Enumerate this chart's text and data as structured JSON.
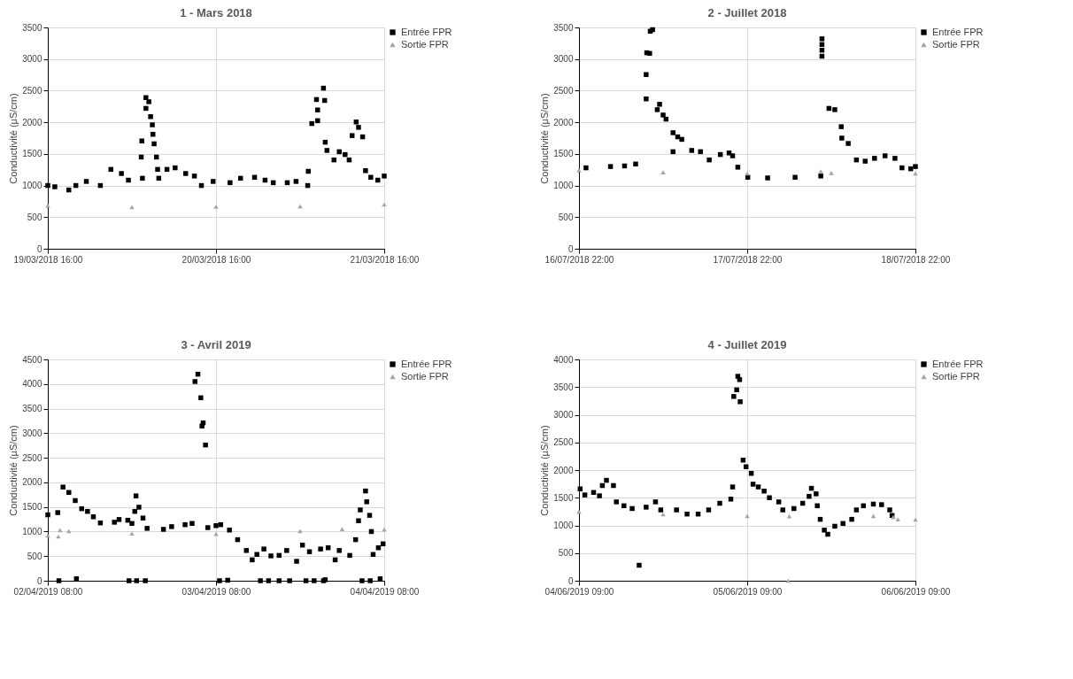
{
  "chart_data": [
    {
      "type": "scatter",
      "title": "1  -  Mars 2018",
      "ylabel": "Conductivité (µS/cm)",
      "grid": true,
      "legend": "top right",
      "xlim": [
        "2018-03-19T16:00",
        "2018-03-21T16:00"
      ],
      "xticks": [
        {
          "value": "2018-03-19T16:00",
          "label": "19/03/2018 16:00"
        },
        {
          "value": "2018-03-20T16:00",
          "label": "20/03/2018 16:00"
        },
        {
          "value": "2018-03-21T16:00",
          "label": "21/03/2018 16:00"
        }
      ],
      "ylim": [
        0,
        3500
      ],
      "yticks": [
        0,
        500,
        1000,
        1500,
        2000,
        2500,
        3000,
        3500
      ],
      "series": [
        {
          "name": "Entrée FPR",
          "color": "#000000",
          "marker": "square",
          "x": [
            "2018-03-19T16:00",
            "2018-03-19T17:00",
            "2018-03-19T19:00",
            "2018-03-19T20:00",
            "2018-03-19T21:30",
            "2018-03-19T23:30",
            "2018-03-20T01:00",
            "2018-03-20T02:30",
            "2018-03-20T03:30",
            "2018-03-20T05:20",
            "2018-03-20T05:25",
            "2018-03-20T05:30",
            "2018-03-20T06:00",
            "2018-03-20T06:00",
            "2018-03-20T06:25",
            "2018-03-20T06:40",
            "2018-03-20T06:55",
            "2018-03-20T07:00",
            "2018-03-20T07:10",
            "2018-03-20T07:30",
            "2018-03-20T07:40",
            "2018-03-20T07:50",
            "2018-03-20T09:00",
            "2018-03-20T10:10",
            "2018-03-20T11:40",
            "2018-03-20T12:55",
            "2018-03-20T13:55",
            "2018-03-20T15:35",
            "2018-03-20T18:00",
            "2018-03-20T19:30",
            "2018-03-20T21:30",
            "2018-03-20T23:00",
            "2018-03-21T00:10",
            "2018-03-21T02:10",
            "2018-03-21T03:25",
            "2018-03-21T05:05",
            "2018-03-21T05:10",
            "2018-03-21T05:40",
            "2018-03-21T06:20",
            "2018-03-21T06:30",
            "2018-03-21T06:30",
            "2018-03-21T07:20",
            "2018-03-21T07:30",
            "2018-03-21T07:35",
            "2018-03-21T07:50",
            "2018-03-21T08:50",
            "2018-03-21T09:35",
            "2018-03-21T10:25",
            "2018-03-21T11:00",
            "2018-03-21T11:25",
            "2018-03-21T12:00",
            "2018-03-21T12:20",
            "2018-03-21T12:55",
            "2018-03-21T13:20",
            "2018-03-21T14:05",
            "2018-03-21T15:05",
            "2018-03-21T16:00"
          ],
          "values": [
            1000,
            980,
            930,
            1000,
            1065,
            1000,
            1255,
            1190,
            1085,
            1450,
            1705,
            1115,
            2390,
            2220,
            2325,
            2090,
            1960,
            1810,
            1660,
            1450,
            1255,
            1115,
            1255,
            1280,
            1190,
            1150,
            1000,
            1065,
            1045,
            1115,
            1130,
            1085,
            1045,
            1045,
            1065,
            1000,
            1225,
            1980,
            2360,
            2025,
            2195,
            2540,
            2345,
            1685,
            1555,
            1405,
            1535,
            1490,
            1405,
            1790,
            2005,
            1920,
            1770,
            1235,
            1130,
            1085,
            1150
          ]
        },
        {
          "name": "Sortie FPR",
          "color": "#a5a5a5",
          "marker": "triangle",
          "x": [
            "2018-03-19T16:00",
            "2018-03-20T04:00",
            "2018-03-20T16:00",
            "2018-03-21T04:00",
            "2018-03-21T16:00"
          ],
          "values": [
            680,
            660,
            665,
            670,
            700
          ]
        }
      ]
    },
    {
      "type": "scatter",
      "title": "2  -  Juillet 2018",
      "ylabel": "Conductivité (µS/cm)",
      "grid": true,
      "legend": "top right",
      "xlim": [
        "2018-07-16T22:00",
        "2018-07-18T22:00"
      ],
      "xticks": [
        {
          "value": "2018-07-16T22:00",
          "label": "16/07/2018 22:00"
        },
        {
          "value": "2018-07-17T22:00",
          "label": "17/07/2018 22:00"
        },
        {
          "value": "2018-07-18T22:00",
          "label": "18/07/2018 22:00"
        }
      ],
      "ylim": [
        0,
        3500
      ],
      "yticks": [
        0,
        500,
        1000,
        1500,
        2000,
        2500,
        3000,
        3500
      ],
      "series": [
        {
          "name": "Entrée FPR",
          "color": "#000000",
          "marker": "square",
          "x": [
            "2018-07-16T23:00",
            "2018-07-17T02:30",
            "2018-07-17T04:30",
            "2018-07-17T06:05",
            "2018-07-17T07:35",
            "2018-07-17T07:35",
            "2018-07-17T07:40",
            "2018-07-17T08:05",
            "2018-07-17T08:10",
            "2018-07-17T08:30",
            "2018-07-17T09:10",
            "2018-07-17T09:30",
            "2018-07-17T10:00",
            "2018-07-17T10:25",
            "2018-07-17T11:25",
            "2018-07-17T11:25",
            "2018-07-17T12:05",
            "2018-07-17T12:40",
            "2018-07-17T14:05",
            "2018-07-17T15:20",
            "2018-07-17T16:35",
            "2018-07-17T18:10",
            "2018-07-17T19:25",
            "2018-07-17T19:55",
            "2018-07-17T20:40",
            "2018-07-17T22:05",
            "2018-07-18T00:55",
            "2018-07-18T04:50",
            "2018-07-18T08:30",
            "2018-07-18T08:40",
            "2018-07-18T08:40",
            "2018-07-18T08:40",
            "2018-07-18T08:40",
            "2018-07-18T09:40",
            "2018-07-18T10:30",
            "2018-07-18T11:25",
            "2018-07-18T11:30",
            "2018-07-18T12:25",
            "2018-07-18T13:35",
            "2018-07-18T14:50",
            "2018-07-18T16:10",
            "2018-07-18T17:40",
            "2018-07-18T19:05",
            "2018-07-18T20:05",
            "2018-07-18T21:20",
            "2018-07-18T22:00"
          ],
          "values": [
            1280,
            1300,
            1310,
            1340,
            2370,
            2755,
            3100,
            3090,
            3440,
            3465,
            2200,
            2285,
            2115,
            2050,
            1535,
            1835,
            1770,
            1730,
            1555,
            1535,
            1405,
            1490,
            1515,
            1470,
            1290,
            1130,
            1120,
            1130,
            1150,
            3320,
            3230,
            3140,
            3045,
            2220,
            2200,
            1930,
            1750,
            1665,
            1405,
            1385,
            1430,
            1470,
            1430,
            1280,
            1265,
            1300
          ]
        },
        {
          "name": "Sortie FPR",
          "color": "#a5a5a5",
          "marker": "triangle",
          "x": [
            "2018-07-16T22:00",
            "2018-07-17T10:00",
            "2018-07-17T22:00",
            "2018-07-18T08:30",
            "2018-07-18T10:00",
            "2018-07-18T22:00"
          ],
          "values": [
            1240,
            1210,
            1190,
            1225,
            1200,
            1190
          ]
        }
      ]
    },
    {
      "type": "scatter",
      "title": "3  -  Avril 2019",
      "ylabel": "Conductivité (µS/cm)",
      "grid": true,
      "legend": "top right",
      "xlim": [
        "2019-04-02T08:00",
        "2019-04-04T08:00"
      ],
      "xticks": [
        {
          "value": "2019-04-02T08:00",
          "label": "02/04/2019 08:00"
        },
        {
          "value": "2019-04-03T08:00",
          "label": "03/04/2019 08:00"
        },
        {
          "value": "2019-04-04T08:00",
          "label": "04/04/2019 08:00"
        }
      ],
      "ylim": [
        0,
        4500
      ],
      "yticks": [
        0,
        500,
        1000,
        1500,
        2000,
        2500,
        3000,
        3500,
        4000,
        4500
      ],
      "series": [
        {
          "name": "Entrée FPR",
          "color": "#000000",
          "marker": "square",
          "x": [
            "2019-04-02T08:00",
            "2019-04-02T09:25",
            "2019-04-02T09:35",
            "2019-04-02T10:10",
            "2019-04-02T11:00",
            "2019-04-02T11:55",
            "2019-04-02T12:05",
            "2019-04-02T12:50",
            "2019-04-02T13:40",
            "2019-04-02T14:30",
            "2019-04-02T15:30",
            "2019-04-02T17:30",
            "2019-04-02T18:10",
            "2019-04-02T19:25",
            "2019-04-02T19:35",
            "2019-04-02T20:00",
            "2019-04-02T20:25",
            "2019-04-02T20:35",
            "2019-04-02T20:40",
            "2019-04-02T21:00",
            "2019-04-02T21:35",
            "2019-04-02T21:55",
            "2019-04-02T22:10",
            "2019-04-03T00:30",
            "2019-04-03T01:40",
            "2019-04-03T03:35",
            "2019-04-03T04:35",
            "2019-04-03T05:00",
            "2019-04-03T05:25",
            "2019-04-03T05:50",
            "2019-04-03T06:00",
            "2019-04-03T06:10",
            "2019-04-03T06:30",
            "2019-04-03T06:50",
            "2019-04-03T08:00",
            "2019-04-03T08:30",
            "2019-04-03T08:40",
            "2019-04-03T09:40",
            "2019-04-03T09:55",
            "2019-04-03T11:05",
            "2019-04-03T12:20",
            "2019-04-03T13:10",
            "2019-04-03T13:50",
            "2019-04-03T14:20",
            "2019-04-03T14:50",
            "2019-04-03T15:30",
            "2019-04-03T15:50",
            "2019-04-03T17:00",
            "2019-04-03T17:00",
            "2019-04-03T18:05",
            "2019-04-03T18:30",
            "2019-04-03T19:30",
            "2019-04-03T20:20",
            "2019-04-03T20:50",
            "2019-04-03T21:20",
            "2019-04-03T22:00",
            "2019-04-03T22:55",
            "2019-04-03T23:20",
            "2019-04-03T23:35",
            "2019-04-04T00:00",
            "2019-04-04T01:00",
            "2019-04-04T01:35",
            "2019-04-04T03:05",
            "2019-04-04T03:55",
            "2019-04-04T04:20",
            "2019-04-04T04:35",
            "2019-04-04T04:50",
            "2019-04-04T05:20",
            "2019-04-04T05:30",
            "2019-04-04T05:55",
            "2019-04-04T06:00",
            "2019-04-04T06:10",
            "2019-04-04T06:25",
            "2019-04-04T07:10",
            "2019-04-04T07:25",
            "2019-04-04T07:50"
          ],
          "values": [
            1340,
            1385,
            0,
            1905,
            1795,
            1630,
            40,
            1465,
            1410,
            1300,
            1175,
            1190,
            1245,
            1230,
            0,
            1165,
            1410,
            1725,
            0,
            1495,
            1275,
            0,
            1065,
            1045,
            1100,
            1140,
            1165,
            4050,
            4200,
            3720,
            3145,
            3210,
            2760,
            1080,
            1120,
            0,
            1140,
            10,
            1030,
            835,
            615,
            425,
            535,
            0,
            645,
            0,
            505,
            515,
            0,
            615,
            0,
            395,
            725,
            0,
            590,
            0,
            645,
            0,
            20,
            670,
            425,
            615,
            515,
            835,
            1220,
            1440,
            0,
            1825,
            1605,
            1330,
            0,
            1000,
            535,
            670,
            40,
            750
          ]
        },
        {
          "name": "Sortie FPR",
          "color": "#a5a5a5",
          "marker": "triangle",
          "x": [
            "2019-04-02T08:00",
            "2019-04-02T09:30",
            "2019-04-02T09:45",
            "2019-04-02T11:00",
            "2019-04-02T20:00",
            "2019-04-03T08:00",
            "2019-04-03T20:00",
            "2019-04-04T02:00",
            "2019-04-04T08:00"
          ],
          "values": [
            920,
            900,
            1030,
            1010,
            960,
            950,
            1010,
            1050,
            1040
          ]
        }
      ]
    },
    {
      "type": "scatter",
      "title": "4  -  Juillet 2019",
      "ylabel": "Conductivité (µS/cm)",
      "grid": true,
      "legend": "top right",
      "xlim": [
        "2019-06-04T09:00",
        "2019-06-06T09:00"
      ],
      "xticks": [
        {
          "value": "2019-06-04T09:00",
          "label": "04/06/2019 09:00"
        },
        {
          "value": "2019-06-05T09:00",
          "label": "05/06/2019 09:00"
        },
        {
          "value": "2019-06-06T09:00",
          "label": "06/06/2019 09:00"
        }
      ],
      "ylim": [
        0,
        4000
      ],
      "yticks": [
        0,
        500,
        1000,
        1500,
        2000,
        2500,
        3000,
        3500,
        4000
      ],
      "series": [
        {
          "name": "Entrée FPR",
          "color": "#000000",
          "marker": "square",
          "x": [
            "2019-06-04T09:10",
            "2019-06-04T09:50",
            "2019-06-04T11:05",
            "2019-06-04T11:55",
            "2019-06-04T12:20",
            "2019-06-04T12:55",
            "2019-06-04T13:55",
            "2019-06-04T14:20",
            "2019-06-04T15:25",
            "2019-06-04T16:35",
            "2019-06-04T17:35",
            "2019-06-04T18:35",
            "2019-06-04T19:55",
            "2019-06-04T20:40",
            "2019-06-04T22:55",
            "2019-06-05T00:25",
            "2019-06-05T02:00",
            "2019-06-05T03:30",
            "2019-06-05T05:05",
            "2019-06-05T06:40",
            "2019-06-05T06:55",
            "2019-06-05T07:05",
            "2019-06-05T07:30",
            "2019-06-05T07:40",
            "2019-06-05T07:55",
            "2019-06-05T08:00",
            "2019-06-05T08:25",
            "2019-06-05T08:50",
            "2019-06-05T09:35",
            "2019-06-05T09:50",
            "2019-06-05T10:35",
            "2019-06-05T11:25",
            "2019-06-05T12:10",
            "2019-06-05T13:30",
            "2019-06-05T14:05",
            "2019-06-05T15:40",
            "2019-06-05T16:55",
            "2019-06-05T17:50",
            "2019-06-05T18:10",
            "2019-06-05T18:50",
            "2019-06-05T19:00",
            "2019-06-05T19:25",
            "2019-06-05T20:00",
            "2019-06-05T20:30",
            "2019-06-05T21:30",
            "2019-06-05T22:40",
            "2019-06-05T23:55",
            "2019-06-06T00:35",
            "2019-06-06T01:35",
            "2019-06-06T03:00",
            "2019-06-06T04:10",
            "2019-06-06T05:20",
            "2019-06-06T05:40"
          ],
          "values": [
            1660,
            1550,
            1595,
            1535,
            1720,
            1815,
            1720,
            1425,
            1355,
            1305,
            280,
            1330,
            1425,
            1280,
            1280,
            1205,
            1205,
            1280,
            1400,
            1475,
            1695,
            3330,
            3450,
            3695,
            3635,
            3235,
            2180,
            2060,
            1940,
            1745,
            1695,
            1620,
            1500,
            1425,
            1280,
            1305,
            1400,
            1525,
            1670,
            1570,
            1355,
            1110,
            915,
            840,
            985,
            1035,
            1110,
            1280,
            1355,
            1385,
            1375,
            1280,
            1180
          ]
        },
        {
          "name": "Sortie FPR",
          "color": "#a5a5a5",
          "marker": "triangle",
          "x": [
            "2019-06-04T09:00",
            "2019-06-04T21:00",
            "2019-06-05T09:00",
            "2019-06-05T14:50",
            "2019-06-05T15:00",
            "2019-06-06T03:00",
            "2019-06-06T05:50",
            "2019-06-06T06:30",
            "2019-06-06T09:00"
          ],
          "values": [
            1245,
            1200,
            1170,
            0,
            1165,
            1170,
            1150,
            1110,
            1105
          ]
        }
      ]
    }
  ]
}
